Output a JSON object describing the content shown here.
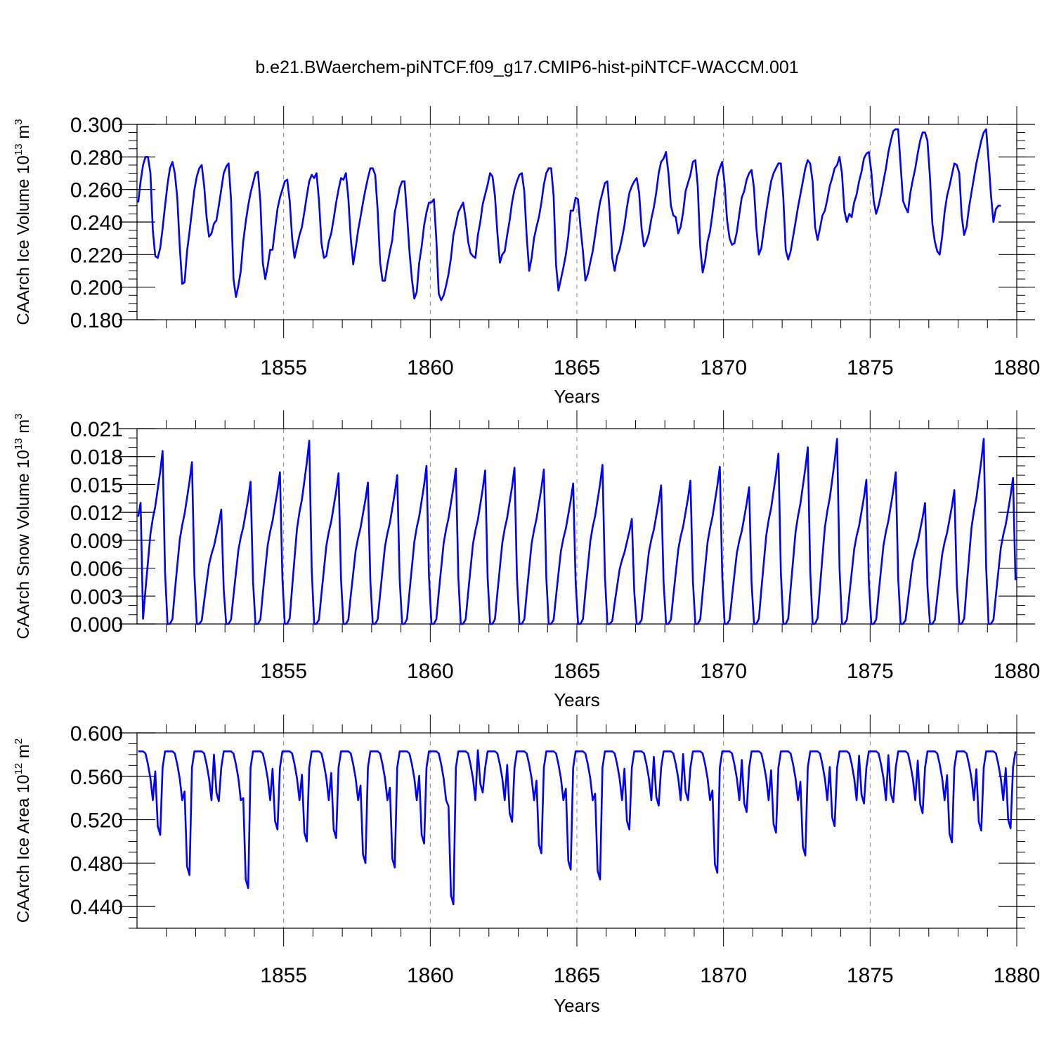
{
  "title": "b.e21.BWaerchem-piNTCF.f09_g17.CMIP6-hist-piNTCF-WACCM.001",
  "colors": {
    "line": "#0000ff",
    "axis": "#000000",
    "grid": "#888888"
  },
  "chart_data": [
    {
      "type": "line",
      "ylabel_main": "CAArch Ice Volume 10",
      "ylabel_exp": "13",
      "ylabel_unit": " m",
      "ylabel_unitexp": "3",
      "xlabel": "Years",
      "xlim": [
        1850,
        1880
      ],
      "ylim": [
        0.18,
        0.3
      ],
      "yticks": [
        0.18,
        0.2,
        0.22,
        0.24,
        0.26,
        0.28,
        0.3
      ],
      "ytick_labels": [
        "0.180",
        "0.200",
        "0.220",
        "0.240",
        "0.260",
        "0.280",
        "0.300"
      ],
      "yminor": 0.005,
      "xticks": [
        1855,
        1860,
        1865,
        1870,
        1875,
        1880
      ],
      "xtick_labels": [
        "1855",
        "1860",
        "1865",
        "1870",
        "1875",
        "1880"
      ],
      "series": [
        {
          "name": "CAArch Ice Volume",
          "start": 1850.04,
          "step": 0.08333,
          "values": [
            0.252,
            0.265,
            0.275,
            0.28,
            0.28,
            0.27,
            0.235,
            0.219,
            0.218,
            0.224,
            0.236,
            0.25,
            0.263,
            0.273,
            0.277,
            0.27,
            0.255,
            0.225,
            0.202,
            0.203,
            0.222,
            0.234,
            0.247,
            0.26,
            0.268,
            0.273,
            0.275,
            0.262,
            0.243,
            0.231,
            0.233,
            0.239,
            0.241,
            0.25,
            0.26,
            0.27,
            0.274,
            0.276,
            0.254,
            0.205,
            0.194,
            0.201,
            0.21,
            0.228,
            0.24,
            0.25,
            0.258,
            0.264,
            0.27,
            0.271,
            0.252,
            0.215,
            0.205,
            0.213,
            0.223,
            0.223,
            0.236,
            0.248,
            0.255,
            0.26,
            0.265,
            0.266,
            0.253,
            0.23,
            0.218,
            0.225,
            0.232,
            0.237,
            0.246,
            0.256,
            0.265,
            0.269,
            0.267,
            0.27,
            0.253,
            0.227,
            0.218,
            0.219,
            0.228,
            0.233,
            0.242,
            0.252,
            0.26,
            0.267,
            0.266,
            0.27,
            0.255,
            0.23,
            0.214,
            0.224,
            0.235,
            0.243,
            0.252,
            0.26,
            0.267,
            0.273,
            0.273,
            0.269,
            0.247,
            0.215,
            0.204,
            0.204,
            0.214,
            0.222,
            0.229,
            0.246,
            0.253,
            0.261,
            0.265,
            0.265,
            0.245,
            0.222,
            0.205,
            0.193,
            0.197,
            0.215,
            0.225,
            0.238,
            0.246,
            0.252,
            0.252,
            0.254,
            0.23,
            0.196,
            0.192,
            0.195,
            0.201,
            0.208,
            0.218,
            0.232,
            0.239,
            0.246,
            0.249,
            0.252,
            0.242,
            0.228,
            0.221,
            0.219,
            0.218,
            0.232,
            0.24,
            0.251,
            0.257,
            0.263,
            0.27,
            0.268,
            0.256,
            0.233,
            0.215,
            0.22,
            0.222,
            0.232,
            0.241,
            0.252,
            0.26,
            0.265,
            0.269,
            0.27,
            0.259,
            0.231,
            0.21,
            0.218,
            0.23,
            0.237,
            0.243,
            0.252,
            0.263,
            0.27,
            0.273,
            0.273,
            0.256,
            0.214,
            0.198,
            0.205,
            0.212,
            0.22,
            0.231,
            0.247,
            0.247,
            0.255,
            0.254,
            0.237,
            0.222,
            0.204,
            0.208,
            0.215,
            0.222,
            0.232,
            0.243,
            0.252,
            0.258,
            0.264,
            0.265,
            0.245,
            0.218,
            0.21,
            0.219,
            0.223,
            0.23,
            0.238,
            0.249,
            0.258,
            0.262,
            0.265,
            0.267,
            0.258,
            0.236,
            0.225,
            0.228,
            0.233,
            0.242,
            0.249,
            0.258,
            0.27,
            0.277,
            0.279,
            0.283,
            0.27,
            0.25,
            0.244,
            0.243,
            0.233,
            0.237,
            0.246,
            0.259,
            0.264,
            0.269,
            0.277,
            0.278,
            0.262,
            0.225,
            0.209,
            0.216,
            0.228,
            0.234,
            0.245,
            0.257,
            0.268,
            0.273,
            0.277,
            0.263,
            0.241,
            0.23,
            0.226,
            0.227,
            0.234,
            0.245,
            0.255,
            0.259,
            0.266,
            0.27,
            0.272,
            0.261,
            0.236,
            0.22,
            0.224,
            0.235,
            0.246,
            0.256,
            0.265,
            0.27,
            0.273,
            0.276,
            0.276,
            0.255,
            0.223,
            0.217,
            0.222,
            0.231,
            0.24,
            0.249,
            0.257,
            0.265,
            0.273,
            0.278,
            0.276,
            0.265,
            0.237,
            0.229,
            0.236,
            0.244,
            0.247,
            0.254,
            0.262,
            0.267,
            0.273,
            0.275,
            0.28,
            0.27,
            0.247,
            0.24,
            0.245,
            0.243,
            0.252,
            0.257,
            0.265,
            0.271,
            0.279,
            0.282,
            0.283,
            0.271,
            0.253,
            0.245,
            0.25,
            0.257,
            0.265,
            0.273,
            0.283,
            0.29,
            0.296,
            0.297,
            0.297,
            0.275,
            0.253,
            0.249,
            0.246,
            0.258,
            0.266,
            0.273,
            0.282,
            0.29,
            0.295,
            0.295,
            0.29,
            0.268,
            0.239,
            0.228,
            0.222,
            0.22,
            0.231,
            0.246,
            0.256,
            0.262,
            0.269,
            0.276,
            0.275,
            0.27,
            0.244,
            0.232,
            0.237,
            0.249,
            0.258,
            0.267,
            0.276,
            0.283,
            0.29,
            0.295,
            0.297,
            0.278,
            0.256,
            0.24,
            0.248,
            0.25,
            0.25
          ]
        }
      ]
    },
    {
      "type": "line",
      "ylabel_main": "CAArch Snow Volume 10",
      "ylabel_exp": "13",
      "ylabel_unit": " m",
      "ylabel_unitexp": "3",
      "xlabel": "Years",
      "xlim": [
        1850,
        1880
      ],
      "ylim": [
        0,
        0.021
      ],
      "yticks": [
        0,
        0.003,
        0.006,
        0.009,
        0.012,
        0.015,
        0.018,
        0.021
      ],
      "ytick_labels": [
        "0.000",
        "0.003",
        "0.006",
        "0.009",
        "0.012",
        "0.015",
        "0.018",
        "0.021"
      ],
      "yminor": 0.001,
      "xticks": [
        1855,
        1860,
        1865,
        1870,
        1875,
        1880
      ],
      "xtick_labels": [
        "1855",
        "1860",
        "1865",
        "1870",
        "1875",
        "1880"
      ],
      "series": [
        {
          "name": "CAArch Snow Volume",
          "peaks": [
            0.0186,
            0.0174,
            0.0123,
            0.0153,
            0.0163,
            0.0197,
            0.0162,
            0.0152,
            0.016,
            0.017,
            0.0167,
            0.0165,
            0.0168,
            0.0166,
            0.0151,
            0.0171,
            0.0113,
            0.0149,
            0.0154,
            0.0169,
            0.0147,
            0.0183,
            0.019,
            0.0199,
            0.0155,
            0.0163,
            0.013,
            0.0144,
            0.0199,
            0.0157
          ]
        }
      ]
    },
    {
      "type": "line",
      "ylabel_main": "CAArch Ice Area 10",
      "ylabel_exp": "12",
      "ylabel_unit": " m",
      "ylabel_unitexp": "2",
      "xlabel": "Years",
      "xlim": [
        1850,
        1880
      ],
      "ylim": [
        0.42,
        0.6
      ],
      "yticks": [
        0.44,
        0.48,
        0.52,
        0.56,
        0.6
      ],
      "ytick_labels": [
        "0.440",
        "0.480",
        "0.520",
        "0.560",
        "0.600"
      ],
      "yminor": 0.01,
      "xticks": [
        1855,
        1860,
        1865,
        1870,
        1875,
        1880
      ],
      "xtick_labels": [
        "1855",
        "1860",
        "1865",
        "1870",
        "1875",
        "1880"
      ],
      "series": [
        {
          "name": "CAArch Ice Area",
          "plateau": 0.583,
          "minima": [
            0.506,
            0.469,
            0.537,
            0.457,
            0.511,
            0.5,
            0.503,
            0.48,
            0.476,
            0.498,
            0.442,
            0.545,
            0.518,
            0.489,
            0.474,
            0.465,
            0.511,
            0.533,
            0.538,
            0.471,
            0.527,
            0.508,
            0.487,
            0.514,
            0.535,
            0.536,
            0.526,
            0.499,
            0.51,
            0.512
          ]
        }
      ]
    }
  ]
}
